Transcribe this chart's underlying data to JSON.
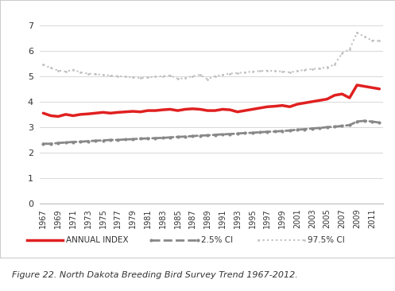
{
  "years": [
    1967,
    1968,
    1969,
    1970,
    1971,
    1972,
    1973,
    1974,
    1975,
    1976,
    1977,
    1978,
    1979,
    1980,
    1981,
    1982,
    1983,
    1984,
    1985,
    1986,
    1987,
    1988,
    1989,
    1990,
    1991,
    1992,
    1993,
    1994,
    1995,
    1996,
    1997,
    1998,
    1999,
    2000,
    2001,
    2002,
    2003,
    2004,
    2005,
    2006,
    2007,
    2008,
    2009,
    2010,
    2011,
    2012
  ],
  "annual_index": [
    3.55,
    3.45,
    3.42,
    3.5,
    3.45,
    3.5,
    3.52,
    3.55,
    3.58,
    3.55,
    3.58,
    3.6,
    3.62,
    3.6,
    3.65,
    3.65,
    3.68,
    3.7,
    3.65,
    3.7,
    3.72,
    3.7,
    3.65,
    3.65,
    3.7,
    3.68,
    3.6,
    3.65,
    3.7,
    3.75,
    3.8,
    3.82,
    3.85,
    3.8,
    3.9,
    3.95,
    4.0,
    4.05,
    4.1,
    4.25,
    4.3,
    4.15,
    4.65,
    4.6,
    4.55,
    4.5
  ],
  "ci_low": [
    2.35,
    2.35,
    2.38,
    2.4,
    2.42,
    2.43,
    2.45,
    2.47,
    2.48,
    2.5,
    2.5,
    2.52,
    2.53,
    2.55,
    2.56,
    2.57,
    2.58,
    2.6,
    2.62,
    2.63,
    2.65,
    2.67,
    2.68,
    2.7,
    2.72,
    2.73,
    2.75,
    2.77,
    2.78,
    2.8,
    2.82,
    2.83,
    2.85,
    2.87,
    2.9,
    2.92,
    2.95,
    2.97,
    3.0,
    3.02,
    3.05,
    3.08,
    3.22,
    3.25,
    3.22,
    3.18
  ],
  "ci_high": [
    5.45,
    5.32,
    5.22,
    5.18,
    5.25,
    5.15,
    5.1,
    5.08,
    5.05,
    5.02,
    5.0,
    4.98,
    4.95,
    4.93,
    4.95,
    4.98,
    5.0,
    5.03,
    4.9,
    4.92,
    5.0,
    5.05,
    4.88,
    5.0,
    5.05,
    5.1,
    5.12,
    5.15,
    5.18,
    5.2,
    5.22,
    5.2,
    5.18,
    5.15,
    5.2,
    5.25,
    5.28,
    5.3,
    5.35,
    5.45,
    5.9,
    6.05,
    6.7,
    6.55,
    6.4,
    6.38
  ],
  "annual_color": "#e02020",
  "ci_low_color": "#888888",
  "ci_high_color": "#c0c0c0",
  "ylabel_vals": [
    0,
    1,
    2,
    3,
    4,
    5,
    6,
    7
  ],
  "ytick_labels": [
    "0",
    "1",
    "2",
    "3",
    "4",
    "5",
    "6",
    "7"
  ],
  "xtick_years": [
    1967,
    1969,
    1971,
    1973,
    1975,
    1977,
    1979,
    1981,
    1983,
    1985,
    1987,
    1989,
    1991,
    1993,
    1995,
    1997,
    1999,
    2001,
    2003,
    2005,
    2007,
    2009,
    2011
  ],
  "ylim": [
    0,
    7.3
  ],
  "caption": "Figure 22. North Dakota Breeding Bird Survey Trend 1967-2012.",
  "legend_annual": "ANNUAL INDEX",
  "legend_ci_low": "2.5% CI",
  "legend_ci_high": "97.5% CI",
  "bg_color": "#ffffff",
  "grid_color": "#d8d8d8",
  "outer_border_color": "#cccccc"
}
